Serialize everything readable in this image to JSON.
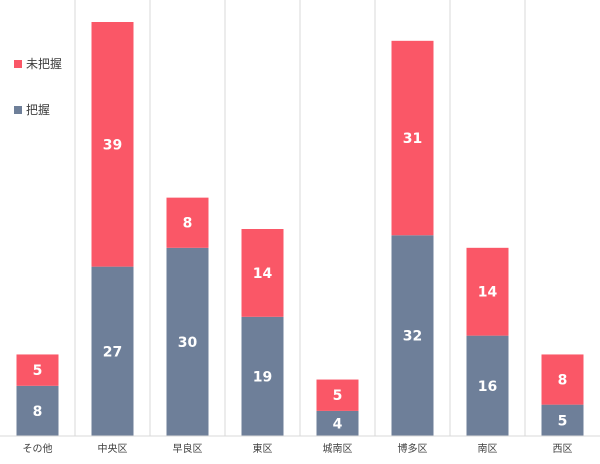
{
  "chart_data": {
    "type": "bar",
    "stacked": true,
    "categories": [
      "その他",
      "中央区",
      "早良区",
      "東区",
      "城南区",
      "博多区",
      "南区",
      "西区"
    ],
    "series": [
      {
        "name": "把握",
        "color": "#6E7F99",
        "values": [
          8,
          27,
          30,
          19,
          4,
          32,
          16,
          5
        ]
      },
      {
        "name": "未把握",
        "color": "#FA5767",
        "values": [
          5,
          39,
          8,
          14,
          5,
          31,
          14,
          8
        ]
      }
    ],
    "title": "",
    "xlabel": "",
    "ylabel": "",
    "ylim": [
      0,
      68
    ],
    "grid": "vertical category separators",
    "legend": "left, stacked top-to-bottom",
    "data_labels": true
  }
}
